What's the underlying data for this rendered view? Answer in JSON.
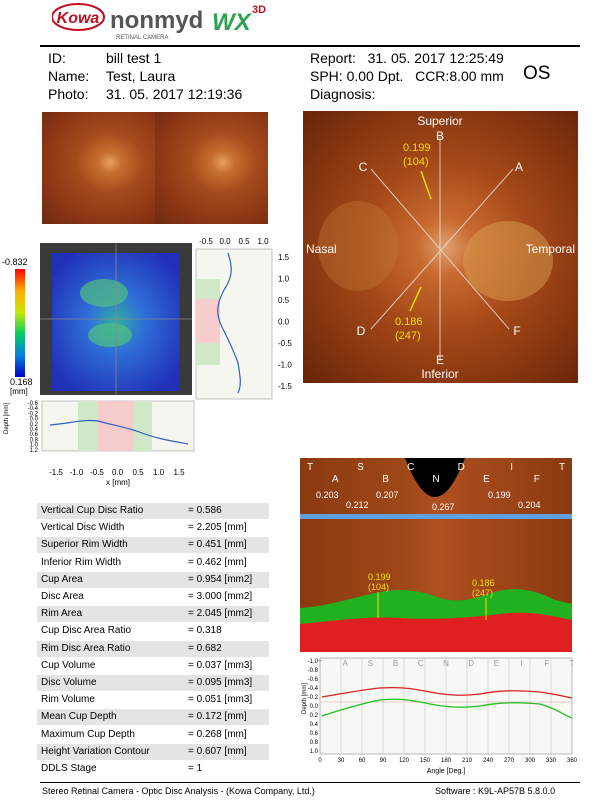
{
  "brand": {
    "kowa": "Kowa",
    "product": "nonmyd",
    "series": "WX",
    "sup": "3D",
    "sub": "RETINAL CAMERA"
  },
  "patient": {
    "id_label": "ID:",
    "id": "bill test 1",
    "name_label": "Name:",
    "name": "Test, Laura",
    "photo_label": "Photo:",
    "photo": "31. 05. 2017 12:19:36"
  },
  "report": {
    "report_label": "Report:",
    "report": "31. 05. 2017 12:25:49",
    "sph_label": "SPH:",
    "sph": "0.00 Dpt.",
    "ccr_label": "CCR:",
    "ccr": "8.00 mm",
    "eye": "OS",
    "diagnosis_label": "Diagnosis:",
    "diagnosis": ""
  },
  "fundus_labels": {
    "superior": "Superior",
    "inferior": "Inferior",
    "nasal": "Nasal",
    "temporal": "Temporal",
    "a": "A",
    "b": "B",
    "c": "C",
    "d": "D",
    "e": "E",
    "f": "F",
    "sup_val": "0.199",
    "sup_val2": "(104)",
    "inf_val": "0.186",
    "inf_val2": "(247)"
  },
  "depth_map": {
    "scale_top": "-0.832",
    "scale_bottom": "0.168",
    "scale_unit": "[mm]",
    "x_ticks": [
      "-1.5",
      "-1.0",
      "-0.5",
      "0.0",
      "0.5",
      "1.0",
      "1.5"
    ],
    "x_label": "x [mm]",
    "y_ticks": [
      "1.5",
      "1.0",
      "0.5",
      "0.0",
      "-0.5",
      "-1.0",
      "-1.5"
    ],
    "profile_top_ticks": [
      "-0.5",
      "0.0",
      "0.5",
      "1.0"
    ],
    "depth_ticks": [
      "-0.6",
      "-0.4",
      "-0.2",
      "0.0",
      "0.2",
      "0.4",
      "0.6",
      "0.8",
      "1.0",
      "1.2"
    ],
    "depth_label": "Depth [mm]"
  },
  "results": [
    {
      "label": "Vertical Cup Disc Ratio",
      "value": "= 0.586"
    },
    {
      "label": "Vertical Disc Width",
      "value": "= 2.205 [mm]"
    },
    {
      "label": "Superior Rim Width",
      "value": "= 0.451 [mm]"
    },
    {
      "label": "Inferior Rim Width",
      "value": "= 0.462 [mm]"
    },
    {
      "label": "Cup Area",
      "value": "= 0.954 [mm2]"
    },
    {
      "label": "Disc Area",
      "value": "= 3.000 [mm2]"
    },
    {
      "label": "Rim Area",
      "value": "= 2.045 [mm2]"
    },
    {
      "label": "Cup Disc Area Ratio",
      "value": "= 0.318"
    },
    {
      "label": "Rim Disc Area Ratio",
      "value": "= 0.682"
    },
    {
      "label": "Cup Volume",
      "value": "= 0.037 [mm3]"
    },
    {
      "label": "Disc Volume",
      "value": "= 0.095 [mm3]"
    },
    {
      "label": "Rim Volume",
      "value": "= 0.051 [mm3]"
    },
    {
      "label": "Mean Cup Depth",
      "value": "= 0.172 [mm]"
    },
    {
      "label": "Maximum Cup Depth",
      "value": "= 0.268 [mm]"
    },
    {
      "label": "Height Variation Contour",
      "value": "= 0.607 [mm]"
    },
    {
      "label": "DDLS Stage",
      "value": "= 1"
    }
  ],
  "unwrap": {
    "sectors": [
      "T",
      "A",
      "S",
      "B",
      "C",
      "N",
      "D",
      "E",
      "I",
      "F",
      "T"
    ],
    "widths": [
      "0.203",
      "0.212",
      "0.207",
      "0.267",
      "0.199",
      "0.204"
    ],
    "sup_val": "0.199",
    "sup_val2": "(104)",
    "inf_val": "0.186",
    "inf_val2": "(247)",
    "angle_ticks": [
      "0",
      "30",
      "60",
      "90",
      "120",
      "150",
      "180",
      "210",
      "240",
      "270",
      "300",
      "330",
      "360"
    ],
    "angle_label": "Angle [Deg.]",
    "depth_ticks": [
      "-1.0",
      "-0.8",
      "-0.6",
      "-0.4",
      "-0.2",
      "0.0",
      "0.2",
      "0.4",
      "0.6",
      "0.8",
      "1.0"
    ],
    "depth_label": "Depth [mm]",
    "contour_colors": {
      "disc": "#e02020",
      "cup": "#20c020"
    }
  },
  "footer": {
    "left": "Stereo Retinal Camera - Optic Disc Analysis - (Kowa Company, Ltd.)",
    "right": "Software : K9L-AP57B 5.8.0.0"
  }
}
